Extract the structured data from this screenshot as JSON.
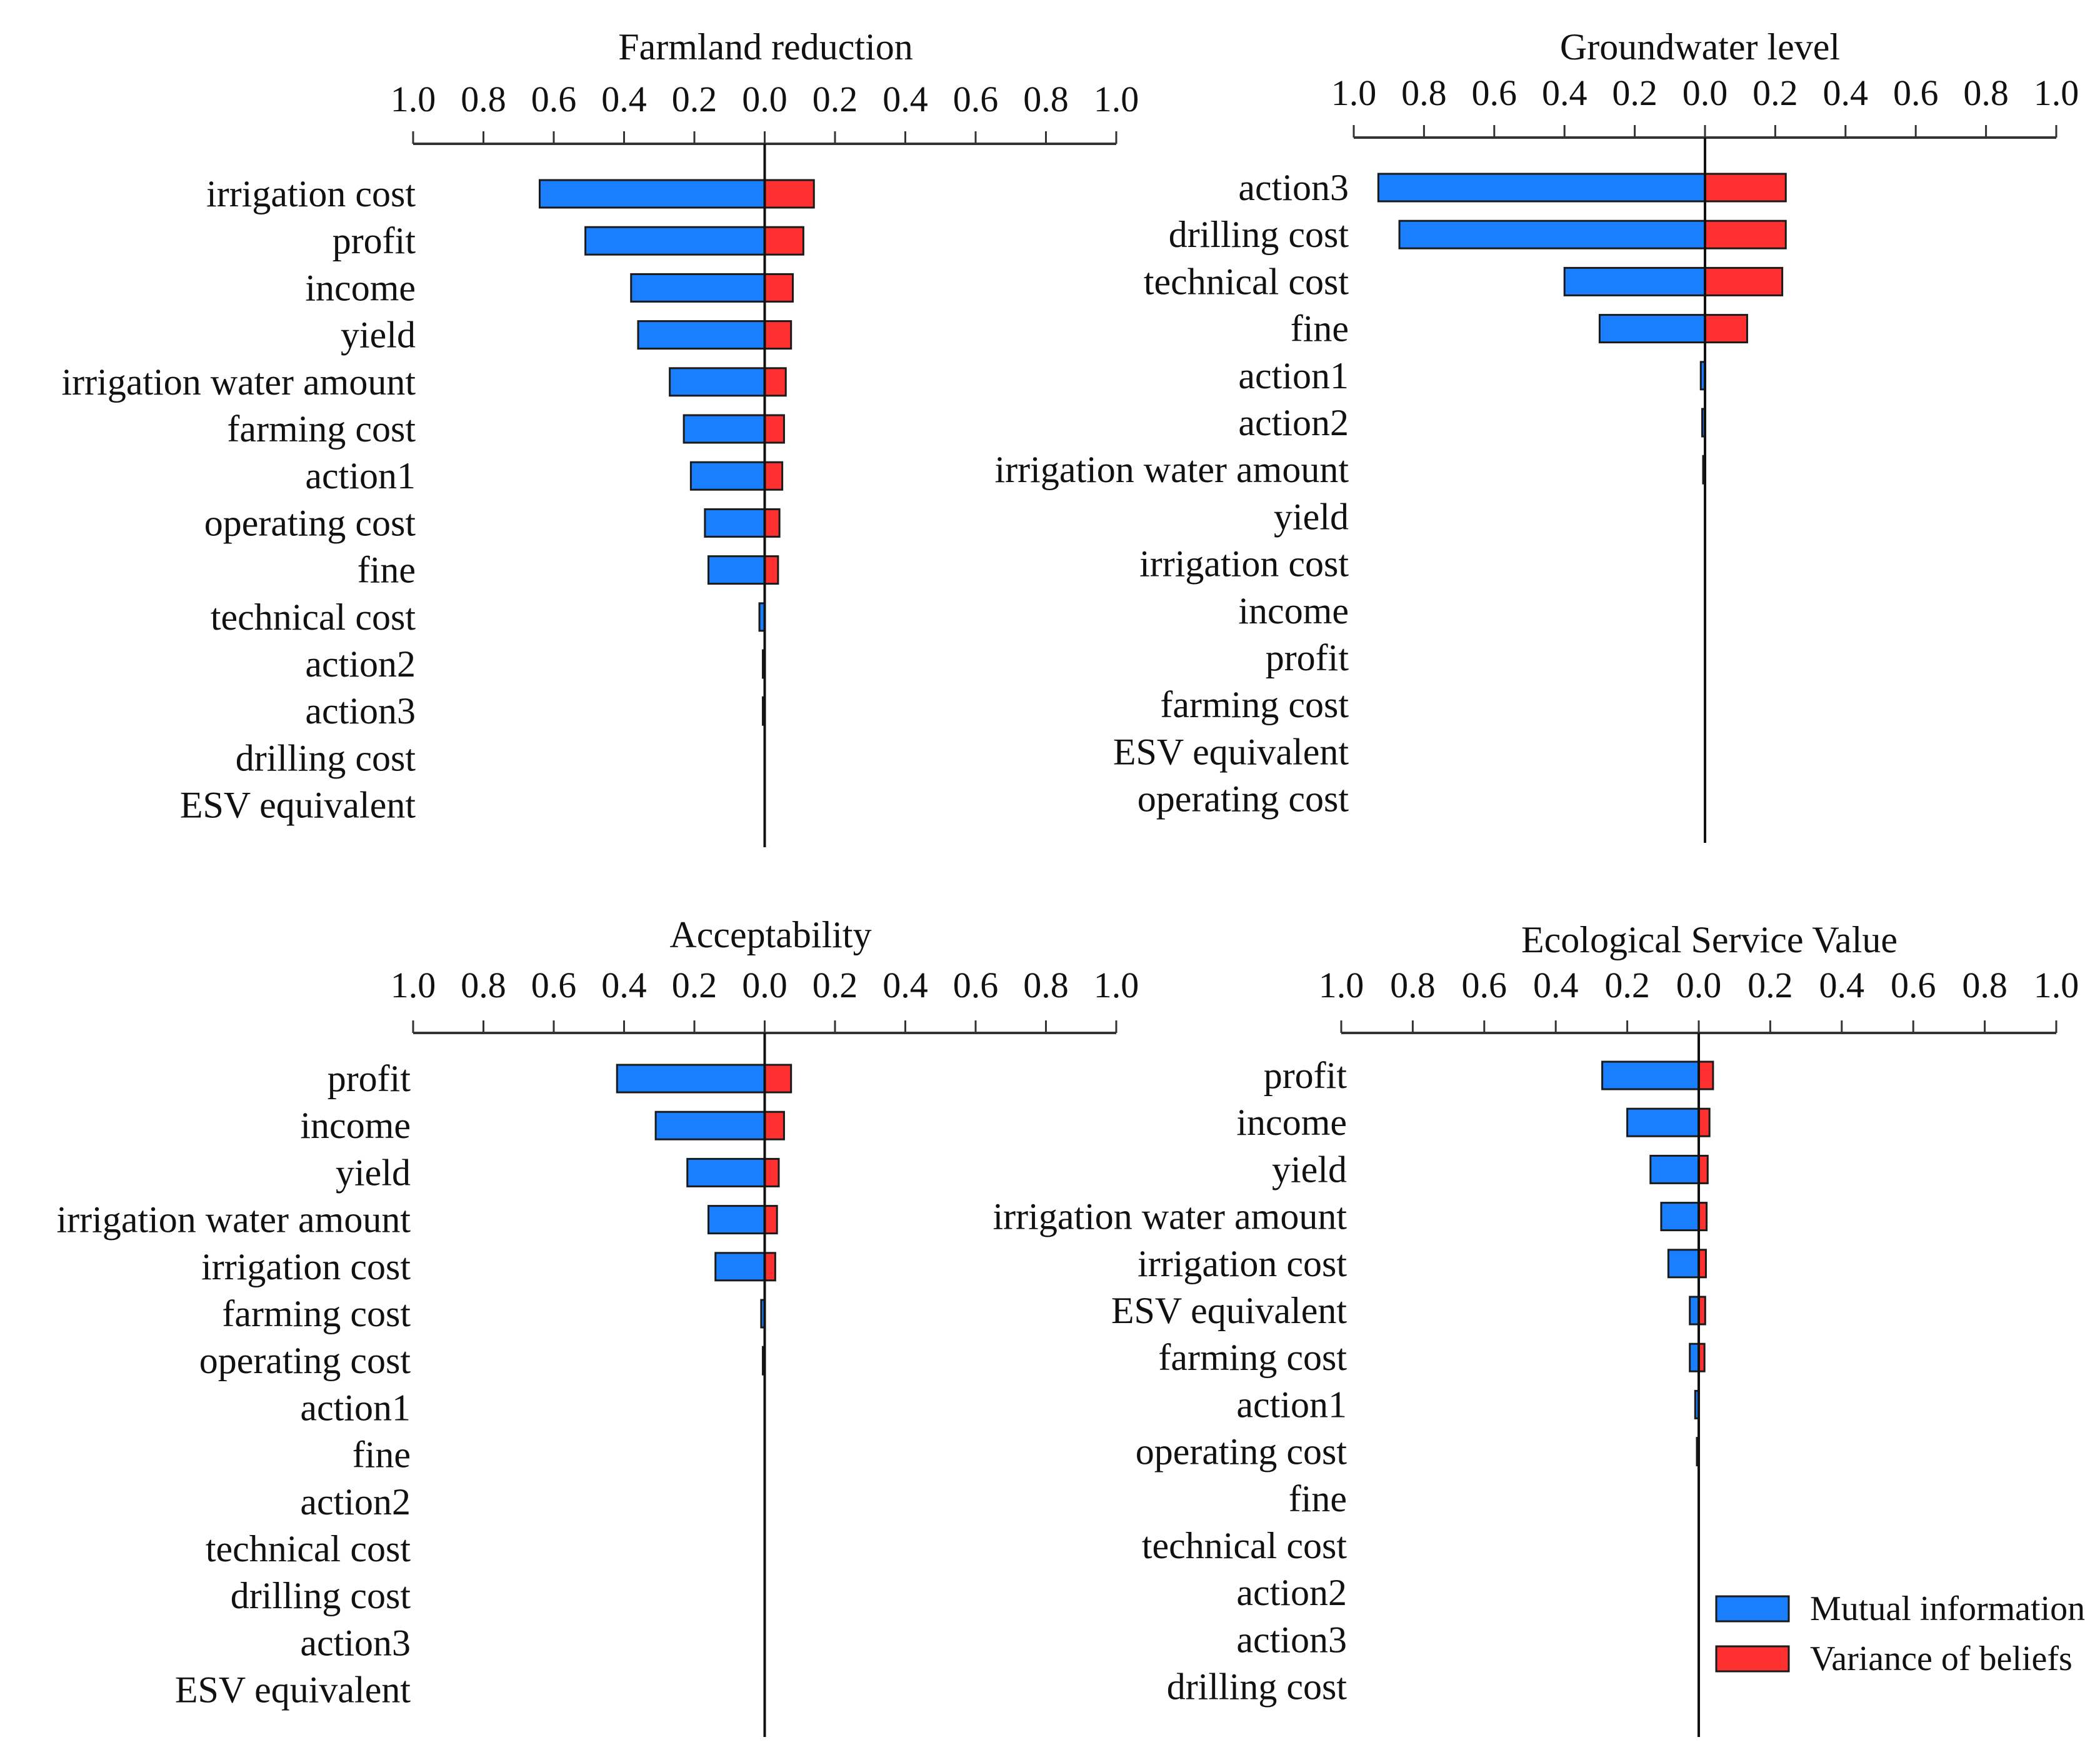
{
  "colors": {
    "mutual_information": "#1a7fff",
    "variance_of_beliefs": "#ff3030",
    "bar_edge": "#1a1a1a",
    "axis": "#333333"
  },
  "legend": {
    "mutual_information": "Mutual information",
    "variance_of_beliefs": "Variance of beliefs"
  },
  "chart_data": [
    {
      "type": "bar",
      "orientation": "horizontal-diverging",
      "title": "Farmland reduction",
      "ticks": [
        "1.0",
        "0.8",
        "0.6",
        "0.4",
        "0.2",
        "0.0",
        "0.2",
        "0.4",
        "0.6",
        "0.8",
        "1.0"
      ],
      "xlim": [
        -1.0,
        1.0
      ],
      "categories": [
        "irrigation cost",
        "profit",
        "income",
        "yield",
        "irrigation water amount",
        "farming cost",
        "action1",
        "operating cost",
        "fine",
        "technical cost",
        "action2",
        "action3",
        "drilling cost",
        "ESV equivalent"
      ],
      "series": [
        {
          "name": "Mutual information",
          "side": "left",
          "values": [
            0.64,
            0.51,
            0.38,
            0.36,
            0.27,
            0.23,
            0.21,
            0.17,
            0.16,
            0.015,
            0.004,
            0.003,
            0.0,
            0.0
          ]
        },
        {
          "name": "Variance of beliefs",
          "side": "right",
          "values": [
            0.14,
            0.11,
            0.08,
            0.075,
            0.06,
            0.055,
            0.05,
            0.042,
            0.038,
            0.0,
            0.0,
            0.0,
            0.0,
            0.0
          ]
        }
      ]
    },
    {
      "type": "bar",
      "orientation": "horizontal-diverging",
      "title": "Groundwater level",
      "ticks": [
        "1.0",
        "0.8",
        "0.6",
        "0.4",
        "0.2",
        "0.0",
        "0.2",
        "0.4",
        "0.6",
        "0.8",
        "1.0"
      ],
      "xlim": [
        -1.0,
        1.0
      ],
      "categories": [
        "action3",
        "drilling cost",
        "technical cost",
        "fine",
        "action1",
        "action2",
        "irrigation water amount",
        "yield",
        "irrigation cost",
        "income",
        "profit",
        "farming cost",
        "ESV equivalent",
        "operating cost"
      ],
      "series": [
        {
          "name": "Mutual information",
          "side": "left",
          "values": [
            0.93,
            0.87,
            0.4,
            0.3,
            0.012,
            0.008,
            0.004,
            0.0,
            0.0,
            0.0,
            0.0,
            0.0,
            0.0,
            0.0
          ]
        },
        {
          "name": "Variance of beliefs",
          "side": "right",
          "values": [
            0.23,
            0.23,
            0.22,
            0.12,
            0.0,
            0.0,
            0.0,
            0.0,
            0.0,
            0.0,
            0.0,
            0.0,
            0.0,
            0.0
          ]
        }
      ]
    },
    {
      "type": "bar",
      "orientation": "horizontal-diverging",
      "title": "Acceptability",
      "ticks": [
        "1.0",
        "0.8",
        "0.6",
        "0.4",
        "0.2",
        "0.0",
        "0.2",
        "0.4",
        "0.6",
        "0.8",
        "1.0"
      ],
      "xlim": [
        -1.0,
        1.0
      ],
      "categories": [
        "profit",
        "income",
        "yield",
        "irrigation water amount",
        "irrigation cost",
        "farming cost",
        "operating cost",
        "action1",
        "fine",
        "action2",
        "technical cost",
        "drilling cost",
        "action3",
        "ESV equivalent"
      ],
      "series": [
        {
          "name": "Mutual information",
          "side": "left",
          "values": [
            0.42,
            0.31,
            0.22,
            0.16,
            0.14,
            0.01,
            0.004,
            0.0,
            0.0,
            0.0,
            0.0,
            0.0,
            0.0,
            0.0
          ]
        },
        {
          "name": "Variance of beliefs",
          "side": "right",
          "values": [
            0.075,
            0.055,
            0.04,
            0.035,
            0.03,
            0.0,
            0.0,
            0.0,
            0.0,
            0.0,
            0.0,
            0.0,
            0.0,
            0.0
          ]
        }
      ]
    },
    {
      "type": "bar",
      "orientation": "horizontal-diverging",
      "title": "Ecological Service Value",
      "ticks": [
        "1.0",
        "0.8",
        "0.6",
        "0.4",
        "0.2",
        "0.0",
        "0.2",
        "0.4",
        "0.6",
        "0.8",
        "1.0"
      ],
      "xlim": [
        -1.0,
        1.0
      ],
      "categories": [
        "profit",
        "income",
        "yield",
        "irrigation water amount",
        "irrigation cost",
        "ESV equivalent",
        "farming cost",
        "action1",
        "operating cost",
        "fine",
        "technical cost",
        "action2",
        "action3",
        "drilling cost"
      ],
      "series": [
        {
          "name": "Mutual information",
          "side": "left",
          "values": [
            0.27,
            0.2,
            0.135,
            0.105,
            0.085,
            0.025,
            0.025,
            0.01,
            0.003,
            0.0,
            0.0,
            0.0,
            0.0,
            0.0
          ]
        },
        {
          "name": "Variance of beliefs",
          "side": "right",
          "values": [
            0.04,
            0.03,
            0.025,
            0.022,
            0.02,
            0.018,
            0.016,
            0.0,
            0.0,
            0.0,
            0.0,
            0.0,
            0.0,
            0.0
          ]
        }
      ]
    }
  ]
}
